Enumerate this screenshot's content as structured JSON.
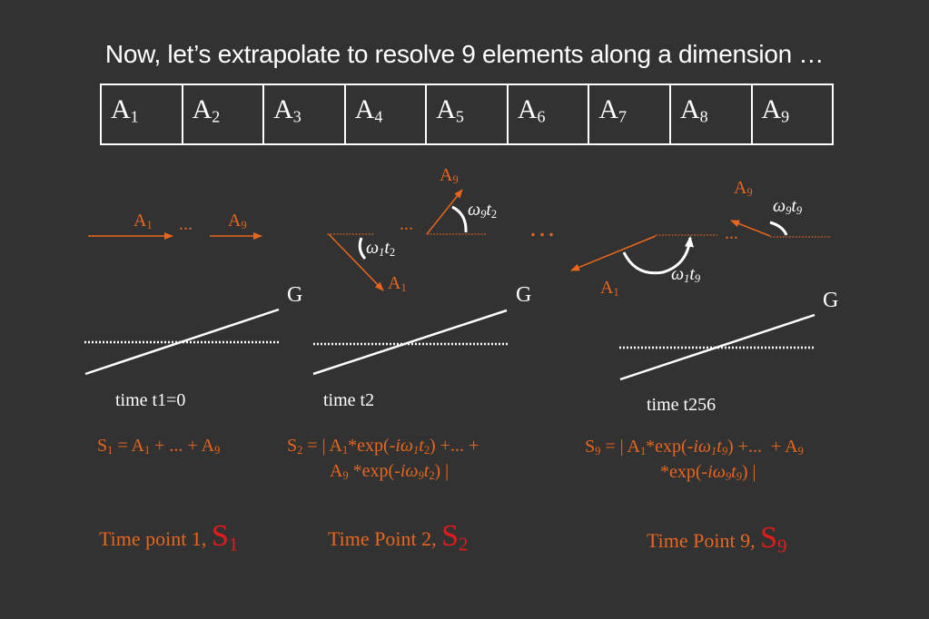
{
  "title": "Now, let’s extrapolate to resolve 9 elements along a dimension …",
  "table": [
    "1",
    "2",
    "3",
    "4",
    "5",
    "6",
    "7",
    "8",
    "9"
  ],
  "colors": {
    "background": "#323232",
    "orange": "#e8661d",
    "red": "#e51b1b",
    "white": "#ffffff"
  },
  "panel1": {
    "g": "G",
    "time": "time t1=0",
    "ellipsis": "...",
    "eq_s": "1",
    "eq_a1": "1",
    "eq_mid": " + ... + A",
    "eq_a9": "9",
    "tp_text": "Time point 1, ",
    "tp_sub": "1"
  },
  "panel2": {
    "g": "G",
    "time": "time t2",
    "ellipsis": "...",
    "eq_line1_s": "2",
    "eq_line2_prefix": "A",
    "tp_text": "Time Point 2, ",
    "tp_sub": "2"
  },
  "panel3": {
    "g": "G",
    "time": "time t256",
    "ellipsis": "...",
    "tp_text": "Time Point 9, ",
    "tp_sub": "9"
  },
  "between_ellipsis": "…"
}
